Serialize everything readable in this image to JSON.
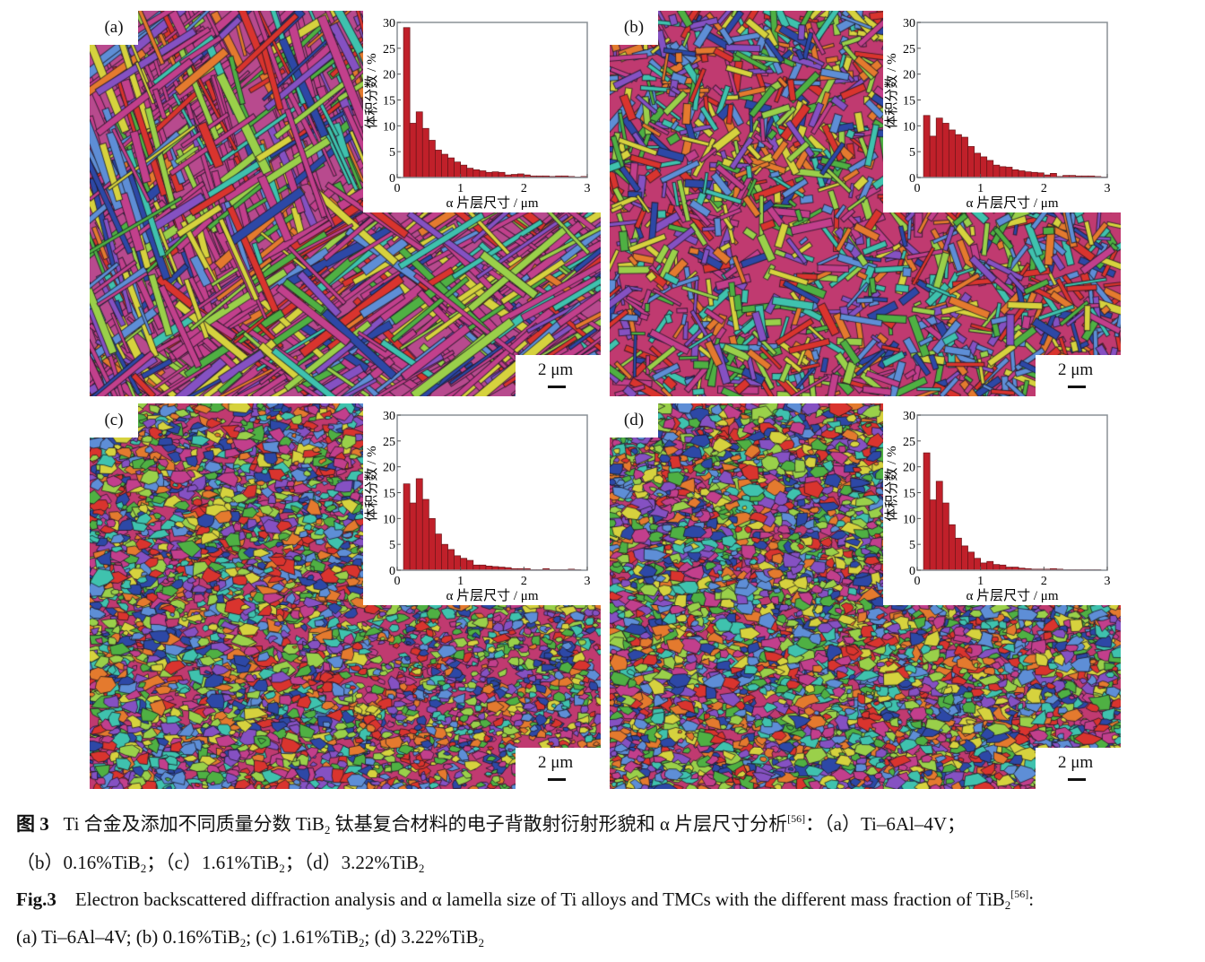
{
  "figure": {
    "panels": [
      {
        "label": "(a)",
        "style": "lamellar",
        "scale_label": "2 μm"
      },
      {
        "label": "(b)",
        "style": "mixed",
        "scale_label": "2 μm"
      },
      {
        "label": "(c)",
        "style": "fine",
        "scale_label": "2 μm"
      },
      {
        "label": "(d)",
        "style": "finer",
        "scale_label": "2 μm"
      }
    ],
    "map_colors": [
      "#c23f8c",
      "#d9342e",
      "#2d48a6",
      "#4fb043",
      "#3fc2ae",
      "#e47a2e",
      "#d6d23e",
      "#8551c2",
      "#9ad04a",
      "#5e8ed6"
    ]
  },
  "chart_data": [
    {
      "type": "bar",
      "panel": "(a)",
      "xlabel": "α 片层尺寸 / μm",
      "ylabel": "体积分数 / %",
      "xlim": [
        0,
        3
      ],
      "ylim": [
        0,
        30
      ],
      "xticks": [
        "0",
        "1",
        "2",
        "3"
      ],
      "yticks": [
        "0",
        "5",
        "10",
        "15",
        "20",
        "25",
        "30"
      ],
      "bin_width": 0.1,
      "bin_start": 0.1,
      "color": "#c0202a",
      "values": [
        29,
        10.5,
        12.7,
        9.5,
        7.2,
        5.3,
        4.5,
        3.8,
        3.0,
        2.4,
        1.8,
        1.5,
        1.3,
        1.0,
        1.1,
        1.0,
        0.5,
        0.6,
        0.7,
        0.5,
        0.3,
        0.3,
        0.3,
        0.2,
        0.3,
        0.3,
        0.2,
        0.1,
        0.2
      ]
    },
    {
      "type": "bar",
      "panel": "(b)",
      "xlabel": "α 片层尺寸 / μm",
      "ylabel": "体积分数 / %",
      "xlim": [
        0,
        3
      ],
      "ylim": [
        0,
        30
      ],
      "xticks": [
        "0",
        "1",
        "2",
        "3"
      ],
      "yticks": [
        "0",
        "5",
        "10",
        "15",
        "20",
        "25",
        "30"
      ],
      "bin_width": 0.1,
      "bin_start": 0.1,
      "color": "#c0202a",
      "values": [
        12,
        8,
        11.5,
        10.5,
        9.2,
        8.3,
        7.8,
        6.0,
        4.7,
        4.0,
        3.3,
        2.4,
        2.1,
        2.0,
        1.5,
        1.3,
        1.1,
        1.0,
        0.9,
        0.5,
        0.8,
        0.2,
        0.4,
        0.4,
        0.3,
        0.3,
        0.3,
        0.2,
        0.1
      ]
    },
    {
      "type": "bar",
      "panel": "(c)",
      "xlabel": "α 片层尺寸 / μm",
      "ylabel": "体积分数 / %",
      "xlim": [
        0,
        3
      ],
      "ylim": [
        0,
        30
      ],
      "xticks": [
        "0",
        "1",
        "2",
        "3"
      ],
      "yticks": [
        "0",
        "5",
        "10",
        "15",
        "20",
        "25",
        "30"
      ],
      "bin_width": 0.1,
      "bin_start": 0.1,
      "color": "#c0202a",
      "values": [
        16.7,
        13,
        17.7,
        13.7,
        10,
        7,
        5,
        4,
        2.8,
        2.3,
        1.9,
        1.0,
        1.0,
        0.8,
        0.7,
        0.6,
        0.5,
        0.3,
        0.3,
        0.3,
        0.1,
        0.1,
        0.3,
        0.1,
        0.1,
        0.1,
        0.2,
        0.1,
        0
      ]
    },
    {
      "type": "bar",
      "panel": "(d)",
      "xlabel": "α 片层尺寸 / μm",
      "ylabel": "体积分数 / %",
      "xlim": [
        0,
        3
      ],
      "ylim": [
        0,
        30
      ],
      "xticks": [
        "0",
        "1",
        "2",
        "3"
      ],
      "yticks": [
        "0",
        "5",
        "10",
        "15",
        "20",
        "25",
        "30"
      ],
      "bin_width": 0.1,
      "bin_start": 0.1,
      "color": "#c0202a",
      "values": [
        22.7,
        13.6,
        17.2,
        13.0,
        8.8,
        6.2,
        4.7,
        3.5,
        2.3,
        1.4,
        1.7,
        1.1,
        1.0,
        0.6,
        0.6,
        0.4,
        0.3,
        0.2,
        0.2,
        0.2,
        0.3,
        0.2,
        0.1,
        0.1,
        0.1,
        0.1,
        0.1,
        0.1,
        0
      ]
    }
  ],
  "caption": {
    "lines": [
      [
        {
          "t": "图 3",
          "b": true
        },
        {
          "t": "   Ti 合金及添加不同质量分数 TiB"
        },
        {
          "t": "2",
          "sub": true
        },
        {
          "t": " 钛基复合材料的电子背散射衍射形貌和 α 片层尺寸分析"
        },
        {
          "t": "[56]",
          "sup": true
        },
        {
          "t": "：（a）Ti–6Al–4V；"
        }
      ],
      [
        {
          "t": "（b）0.16%TiB"
        },
        {
          "t": "2",
          "sub": true
        },
        {
          "t": "；（c）1.61%TiB"
        },
        {
          "t": "2",
          "sub": true
        },
        {
          "t": "；（d）3.22%TiB"
        },
        {
          "t": "2",
          "sub": true
        }
      ],
      [
        {
          "t": "Fig.3",
          "b": true
        },
        {
          "t": "    Electron backscattered diffraction analysis and α lamella size of Ti alloys and TMCs with the different mass fraction of TiB"
        },
        {
          "t": "2",
          "sub": true
        },
        {
          "t": "[56]",
          "sup": true
        },
        {
          "t": ":"
        }
      ],
      [
        {
          "t": "(a) Ti–6Al–4V; (b) 0.16%TiB"
        },
        {
          "t": "2",
          "sub": true
        },
        {
          "t": "; (c) 1.61%TiB"
        },
        {
          "t": "2",
          "sub": true
        },
        {
          "t": "; (d) 3.22%TiB"
        },
        {
          "t": "2",
          "sub": true
        }
      ]
    ]
  }
}
